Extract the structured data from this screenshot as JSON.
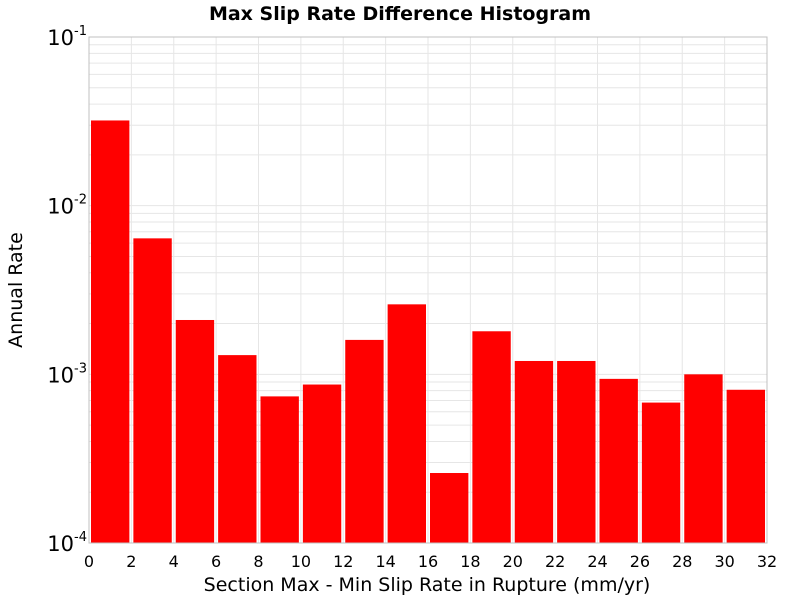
{
  "chart_data": {
    "type": "bar",
    "title": "Max Slip Rate Difference Histogram",
    "xlabel": "Section Max - Min Slip Rate in Rupture (mm/yr)",
    "ylabel": "Annual Rate",
    "y_scale": "log",
    "xlim": [
      0,
      32
    ],
    "ylim": [
      0.0001,
      0.1
    ],
    "x_ticks": [
      0,
      2,
      4,
      6,
      8,
      10,
      12,
      14,
      16,
      18,
      20,
      22,
      24,
      26,
      28,
      30,
      32
    ],
    "x_tick_labels": [
      "0",
      "2",
      "4",
      "6",
      "8",
      "10",
      "12",
      "14",
      "16",
      "18",
      "20",
      "22",
      "24",
      "26",
      "28",
      "30",
      "32"
    ],
    "y_ticks": [
      {
        "value": 0.1,
        "base": "10",
        "exponent": "-1"
      },
      {
        "value": 0.01,
        "base": "10",
        "exponent": "-2"
      },
      {
        "value": 0.001,
        "base": "10",
        "exponent": "-3"
      },
      {
        "value": 0.0001,
        "base": "10",
        "exponent": "-4"
      }
    ],
    "bin_width": 2,
    "bins": [
      {
        "x_start": 0,
        "x_end": 2,
        "value": 0.032
      },
      {
        "x_start": 2,
        "x_end": 4,
        "value": 0.0064
      },
      {
        "x_start": 4,
        "x_end": 6,
        "value": 0.0021
      },
      {
        "x_start": 6,
        "x_end": 8,
        "value": 0.0013
      },
      {
        "x_start": 8,
        "x_end": 10,
        "value": 0.00074
      },
      {
        "x_start": 10,
        "x_end": 12,
        "value": 0.00087
      },
      {
        "x_start": 12,
        "x_end": 14,
        "value": 0.0016
      },
      {
        "x_start": 14,
        "x_end": 16,
        "value": 0.0026
      },
      {
        "x_start": 16,
        "x_end": 18,
        "value": 0.00026
      },
      {
        "x_start": 18,
        "x_end": 20,
        "value": 0.0018
      },
      {
        "x_start": 20,
        "x_end": 22,
        "value": 0.0012
      },
      {
        "x_start": 22,
        "x_end": 24,
        "value": 0.0012
      },
      {
        "x_start": 24,
        "x_end": 26,
        "value": 0.00094
      },
      {
        "x_start": 26,
        "x_end": 28,
        "value": 0.00068
      },
      {
        "x_start": 28,
        "x_end": 30,
        "value": 0.001
      },
      {
        "x_start": 30,
        "x_end": 32,
        "value": 0.00081
      }
    ],
    "bar_color": "#ff0000",
    "grid": true,
    "grid_color": "#e6e6e6",
    "legend": "none"
  }
}
